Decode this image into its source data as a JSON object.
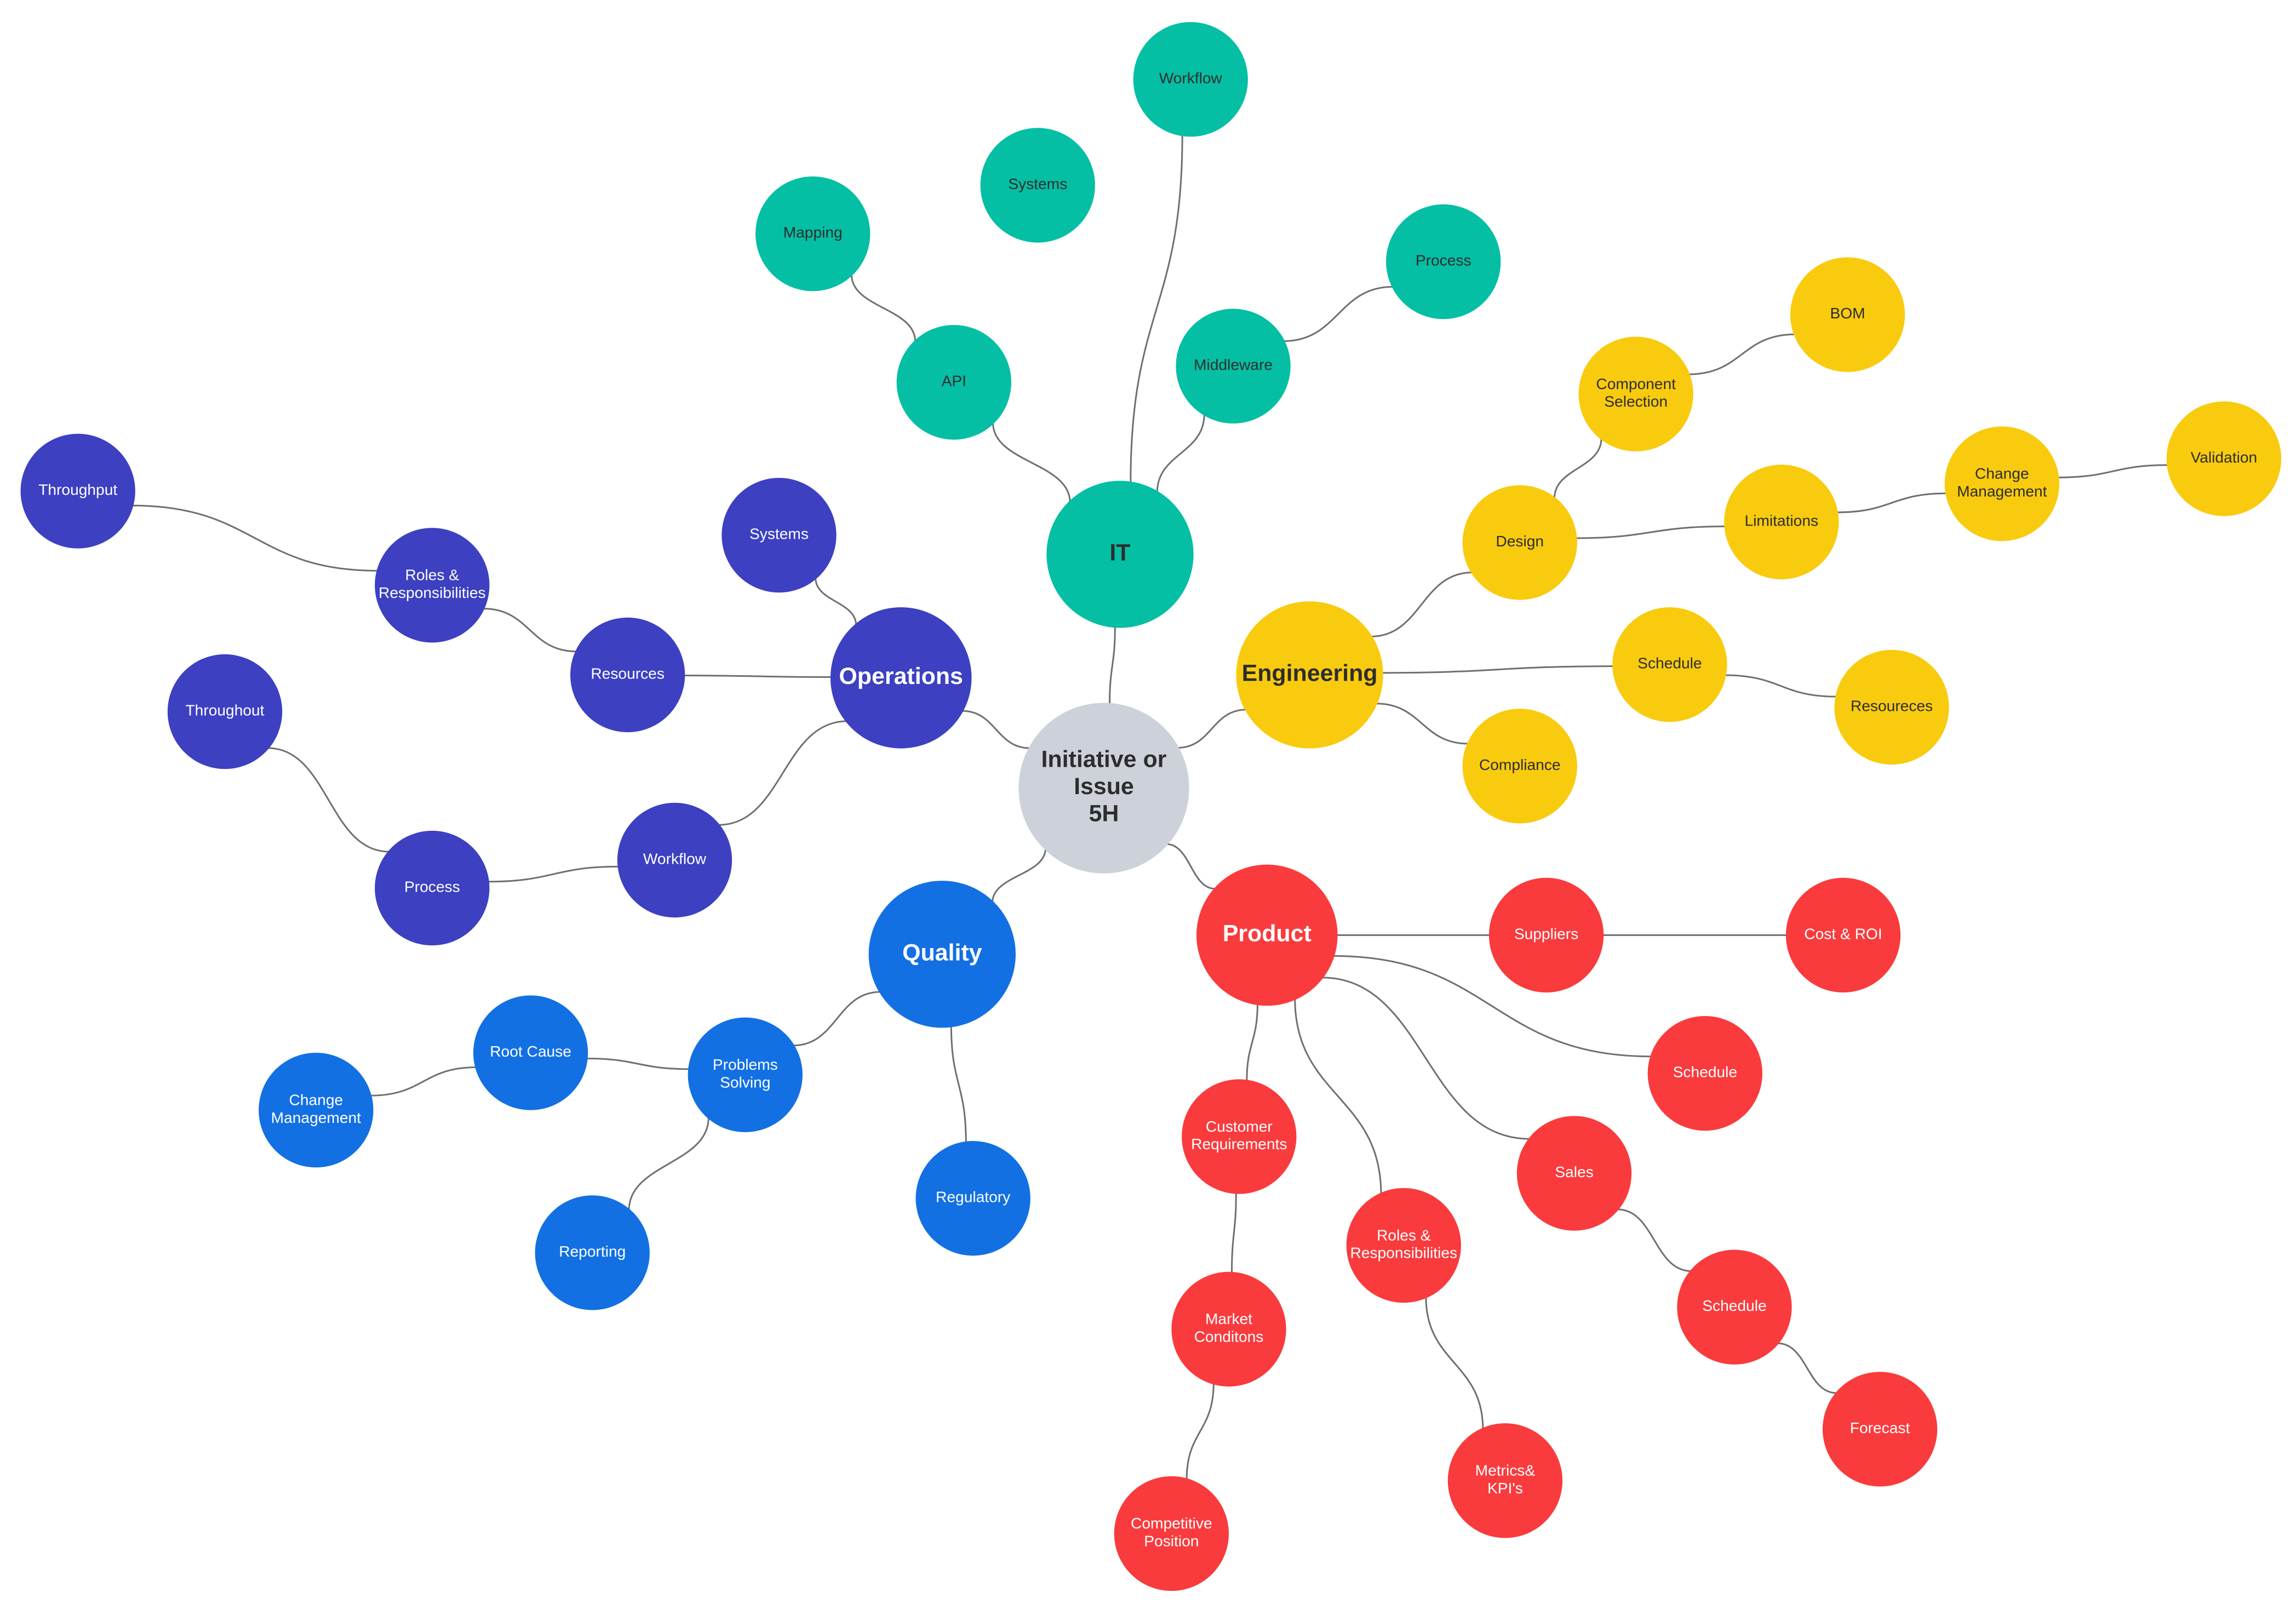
{
  "colors": {
    "center": "#cdd1d9",
    "it": "#04bfa4",
    "engineering": "#f9cb0f",
    "product": "#f93b3d",
    "quality": "#1270e3",
    "operations": "#3c40c1",
    "dark_text": "#2d2d2d",
    "light_text": "#ffffff"
  },
  "center": {
    "id": "center",
    "lines": [
      "Initiative or",
      "Issue",
      "5H"
    ]
  },
  "branches": [
    {
      "id": "it",
      "label": "IT",
      "color_key": "it",
      "text": "dark",
      "children": [
        {
          "id": "it-workflow",
          "label": "Workflow"
        },
        {
          "id": "it-middleware",
          "label": "Middleware",
          "children": [
            {
              "id": "it-process",
              "label": "Process"
            }
          ]
        },
        {
          "id": "it-api",
          "label": "API",
          "children": [
            {
              "id": "it-mapping",
              "label": "Mapping"
            }
          ]
        },
        {
          "id": "it-systems",
          "label": "Systems",
          "floating": true
        }
      ]
    },
    {
      "id": "engineering",
      "label": "Engineering",
      "color_key": "engineering",
      "text": "dark",
      "children": [
        {
          "id": "eng-design",
          "label": "Design",
          "children": [
            {
              "id": "eng-component",
              "label": "Component Selection",
              "children": [
                {
                  "id": "eng-bom",
                  "label": "BOM"
                }
              ]
            },
            {
              "id": "eng-limitations",
              "label": "Limitations",
              "children": [
                {
                  "id": "eng-change",
                  "label": "Change Management",
                  "children": [
                    {
                      "id": "eng-validation",
                      "label": "Validation"
                    }
                  ]
                }
              ]
            }
          ]
        },
        {
          "id": "eng-schedule",
          "label": "Schedule",
          "children": [
            {
              "id": "eng-resoureces",
              "label": "Resoureces"
            }
          ]
        },
        {
          "id": "eng-compliance",
          "label": "Compliance"
        }
      ]
    },
    {
      "id": "product",
      "label": "Product",
      "color_key": "product",
      "text": "light",
      "children": [
        {
          "id": "prod-suppliers",
          "label": "Suppliers",
          "children": [
            {
              "id": "prod-cost",
              "label": "Cost & ROI"
            }
          ]
        },
        {
          "id": "prod-schedule1",
          "label": "Schedule"
        },
        {
          "id": "prod-sales",
          "label": "Sales",
          "children": [
            {
              "id": "prod-schedule2",
              "label": "Schedule",
              "children": [
                {
                  "id": "prod-forecast",
                  "label": "Forecast"
                }
              ]
            }
          ]
        },
        {
          "id": "prod-roles",
          "label": "Roles & Responsibilities",
          "children": [
            {
              "id": "prod-metrics",
              "label": "Metrics& KPI's"
            }
          ]
        },
        {
          "id": "prod-customer",
          "label": "Customer Requirements",
          "children": [
            {
              "id": "prod-market",
              "label": "Market Conditons",
              "children": [
                {
                  "id": "prod-competitive",
                  "label": "Competitive Position"
                }
              ]
            }
          ]
        }
      ]
    },
    {
      "id": "quality",
      "label": "Quality",
      "color_key": "quality",
      "text": "light",
      "children": [
        {
          "id": "q-problems",
          "label": "Problems Solving",
          "children": [
            {
              "id": "q-rootcause",
              "label": "Root Cause",
              "children": [
                {
                  "id": "q-change",
                  "label": "Change Management"
                }
              ]
            },
            {
              "id": "q-reporting",
              "label": "Reporting"
            }
          ]
        },
        {
          "id": "q-regulatory",
          "label": "Regulatory"
        }
      ]
    },
    {
      "id": "operations",
      "label": "Operations",
      "color_key": "operations",
      "text": "light",
      "children": [
        {
          "id": "ops-systems",
          "label": "Systems"
        },
        {
          "id": "ops-resources",
          "label": "Resources",
          "children": [
            {
              "id": "ops-roles",
              "label": "Roles & Responsibilities",
              "children": [
                {
                  "id": "ops-throughput",
                  "label": "Throughput"
                }
              ]
            }
          ]
        },
        {
          "id": "ops-workflow",
          "label": "Workflow",
          "children": [
            {
              "id": "ops-process",
              "label": "Process",
              "children": [
                {
                  "id": "ops-throughout",
                  "label": "Throughout"
                }
              ]
            }
          ]
        }
      ]
    }
  ]
}
